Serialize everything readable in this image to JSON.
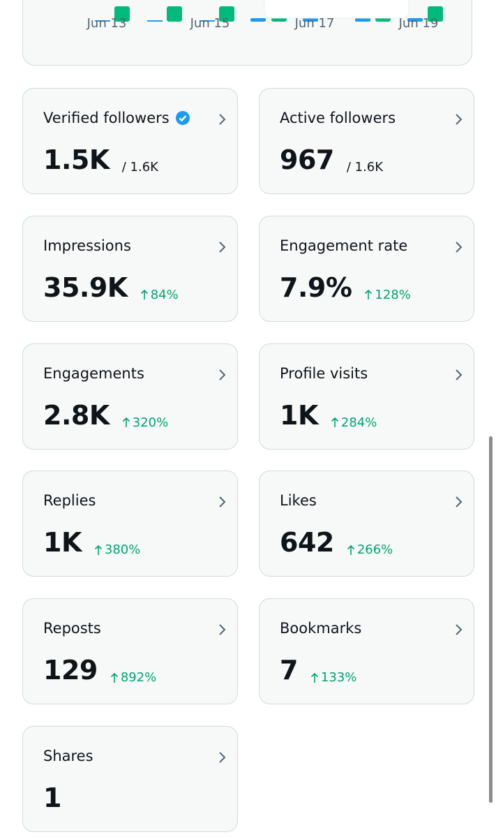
{
  "chart": {
    "x_labels": [
      "Jun 13",
      "Jun 15",
      "Jun 17",
      "Jun 19"
    ]
  },
  "cards": [
    {
      "title": "Verified followers",
      "value": "1.5K",
      "limit": "/ 1.6K"
    },
    {
      "title": "Active followers",
      "value": "967",
      "limit": "/ 1.6K"
    },
    {
      "title": "Impressions",
      "value": "35.9K",
      "change": "84%"
    },
    {
      "title": "Engagement rate",
      "value": "7.9%",
      "change": "128%"
    },
    {
      "title": "Engagements",
      "value": "2.8K",
      "change": "320%"
    },
    {
      "title": "Profile visits",
      "value": "1K",
      "change": "284%"
    },
    {
      "title": "Replies",
      "value": "1K",
      "change": "380%"
    },
    {
      "title": "Likes",
      "value": "642",
      "change": "266%"
    },
    {
      "title": "Reposts",
      "value": "129",
      "change": "892%"
    },
    {
      "title": "Bookmarks",
      "value": "7",
      "change": "133%"
    },
    {
      "title": "Shares",
      "value": "1"
    }
  ]
}
